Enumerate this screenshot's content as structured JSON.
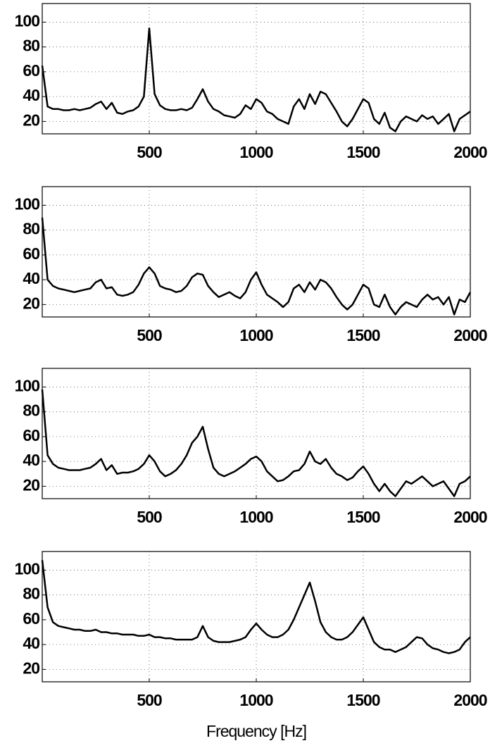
{
  "chart_data": [
    {
      "type": "line",
      "color": "#000000",
      "x": [
        0,
        25,
        50,
        75,
        100,
        125,
        150,
        175,
        200,
        225,
        250,
        275,
        300,
        325,
        350,
        375,
        400,
        425,
        450,
        475,
        500,
        525,
        550,
        575,
        600,
        625,
        650,
        675,
        700,
        725,
        750,
        775,
        800,
        825,
        850,
        875,
        900,
        925,
        950,
        975,
        1000,
        1025,
        1050,
        1075,
        1100,
        1125,
        1150,
        1175,
        1200,
        1225,
        1250,
        1275,
        1300,
        1325,
        1350,
        1375,
        1400,
        1425,
        1450,
        1475,
        1500,
        1525,
        1550,
        1575,
        1600,
        1625,
        1650,
        1675,
        1700,
        1725,
        1750,
        1775,
        1800,
        1825,
        1850,
        1875,
        1900,
        1925,
        1950,
        1975,
        2000
      ],
      "values": [
        65,
        32,
        30,
        30,
        29,
        29,
        30,
        29,
        30,
        31,
        34,
        36,
        30,
        35,
        27,
        26,
        28,
        29,
        32,
        40,
        95,
        42,
        33,
        30,
        29,
        29,
        30,
        29,
        31,
        38,
        46,
        36,
        30,
        28,
        25,
        24,
        23,
        26,
        33,
        30,
        38,
        35,
        28,
        26,
        22,
        20,
        18,
        32,
        38,
        30,
        42,
        34,
        44,
        42,
        35,
        28,
        20,
        16,
        22,
        30,
        38,
        35,
        22,
        18,
        27,
        15,
        12,
        20,
        24,
        22,
        20,
        25,
        22,
        24,
        18,
        22,
        26,
        12,
        22,
        25,
        28
      ],
      "xlim": [
        0,
        2000
      ],
      "ylim": [
        10,
        115
      ],
      "xticks": [
        500,
        1000,
        1500,
        2000
      ],
      "yticks": [
        20,
        40,
        60,
        80,
        100
      ],
      "grid": true
    },
    {
      "type": "line",
      "color": "#000000",
      "x": [
        0,
        25,
        50,
        75,
        100,
        125,
        150,
        175,
        200,
        225,
        250,
        275,
        300,
        325,
        350,
        375,
        400,
        425,
        450,
        475,
        500,
        525,
        550,
        575,
        600,
        625,
        650,
        675,
        700,
        725,
        750,
        775,
        800,
        825,
        850,
        875,
        900,
        925,
        950,
        975,
        1000,
        1025,
        1050,
        1075,
        1100,
        1125,
        1150,
        1175,
        1200,
        1225,
        1250,
        1275,
        1300,
        1325,
        1350,
        1375,
        1400,
        1425,
        1450,
        1475,
        1500,
        1525,
        1550,
        1575,
        1600,
        1625,
        1650,
        1675,
        1700,
        1725,
        1750,
        1775,
        1800,
        1825,
        1850,
        1875,
        1900,
        1925,
        1950,
        1975,
        2000
      ],
      "values": [
        90,
        40,
        35,
        33,
        32,
        31,
        30,
        31,
        32,
        33,
        38,
        40,
        33,
        34,
        28,
        27,
        28,
        30,
        36,
        45,
        50,
        45,
        35,
        33,
        32,
        30,
        31,
        35,
        42,
        45,
        44,
        35,
        30,
        26,
        28,
        30,
        27,
        25,
        30,
        40,
        46,
        36,
        28,
        25,
        22,
        18,
        22,
        33,
        36,
        30,
        38,
        32,
        40,
        38,
        33,
        26,
        20,
        16,
        20,
        28,
        36,
        33,
        20,
        18,
        28,
        18,
        12,
        18,
        22,
        20,
        18,
        24,
        28,
        24,
        26,
        20,
        26,
        12,
        24,
        22,
        30
      ],
      "xlim": [
        0,
        2000
      ],
      "ylim": [
        10,
        115
      ],
      "xticks": [
        500,
        1000,
        1500,
        2000
      ],
      "yticks": [
        20,
        40,
        60,
        80,
        100
      ],
      "grid": true
    },
    {
      "type": "line",
      "color": "#000000",
      "x": [
        0,
        25,
        50,
        75,
        100,
        125,
        150,
        175,
        200,
        225,
        250,
        275,
        300,
        325,
        350,
        375,
        400,
        425,
        450,
        475,
        500,
        525,
        550,
        575,
        600,
        625,
        650,
        675,
        700,
        725,
        750,
        775,
        800,
        825,
        850,
        875,
        900,
        925,
        950,
        975,
        1000,
        1025,
        1050,
        1075,
        1100,
        1125,
        1150,
        1175,
        1200,
        1225,
        1250,
        1275,
        1300,
        1325,
        1350,
        1375,
        1400,
        1425,
        1450,
        1475,
        1500,
        1525,
        1550,
        1575,
        1600,
        1625,
        1650,
        1675,
        1700,
        1725,
        1750,
        1775,
        1800,
        1825,
        1850,
        1875,
        1900,
        1925,
        1950,
        1975,
        2000
      ],
      "values": [
        98,
        45,
        38,
        35,
        34,
        33,
        33,
        33,
        34,
        35,
        38,
        42,
        33,
        37,
        30,
        31,
        31,
        32,
        34,
        38,
        45,
        40,
        32,
        28,
        30,
        33,
        38,
        45,
        55,
        60,
        68,
        50,
        35,
        30,
        28,
        30,
        32,
        35,
        38,
        42,
        44,
        40,
        32,
        28,
        24,
        25,
        28,
        32,
        33,
        38,
        48,
        40,
        38,
        42,
        35,
        30,
        28,
        25,
        27,
        32,
        36,
        30,
        22,
        16,
        22,
        16,
        12,
        18,
        24,
        22,
        25,
        28,
        24,
        20,
        22,
        24,
        18,
        12,
        22,
        24,
        28
      ],
      "xlim": [
        0,
        2000
      ],
      "ylim": [
        10,
        115
      ],
      "xticks": [
        500,
        1000,
        1500,
        2000
      ],
      "yticks": [
        20,
        40,
        60,
        80,
        100
      ],
      "grid": true
    },
    {
      "type": "line",
      "color": "#000000",
      "xlabel": "Frequency [Hz]",
      "x": [
        0,
        25,
        50,
        75,
        100,
        125,
        150,
        175,
        200,
        225,
        250,
        275,
        300,
        325,
        350,
        375,
        400,
        425,
        450,
        475,
        500,
        525,
        550,
        575,
        600,
        625,
        650,
        675,
        700,
        725,
        750,
        775,
        800,
        825,
        850,
        875,
        900,
        925,
        950,
        975,
        1000,
        1025,
        1050,
        1075,
        1100,
        1125,
        1150,
        1175,
        1200,
        1225,
        1250,
        1275,
        1300,
        1325,
        1350,
        1375,
        1400,
        1425,
        1450,
        1475,
        1500,
        1525,
        1550,
        1575,
        1600,
        1625,
        1650,
        1675,
        1700,
        1725,
        1750,
        1775,
        1800,
        1825,
        1850,
        1875,
        1900,
        1925,
        1950,
        1975,
        2000
      ],
      "values": [
        108,
        70,
        58,
        55,
        54,
        53,
        52,
        52,
        51,
        51,
        52,
        50,
        50,
        49,
        49,
        48,
        48,
        48,
        47,
        47,
        48,
        46,
        46,
        45,
        45,
        44,
        44,
        44,
        44,
        46,
        55,
        46,
        43,
        42,
        42,
        42,
        43,
        44,
        46,
        52,
        57,
        52,
        48,
        46,
        46,
        48,
        52,
        60,
        70,
        80,
        90,
        75,
        58,
        50,
        46,
        44,
        44,
        46,
        50,
        56,
        62,
        52,
        42,
        38,
        36,
        36,
        34,
        36,
        38,
        42,
        46,
        45,
        40,
        37,
        36,
        34,
        33,
        34,
        36,
        42,
        46
      ],
      "xlim": [
        0,
        2000
      ],
      "ylim": [
        10,
        115
      ],
      "xticks": [
        500,
        1000,
        1500,
        2000
      ],
      "yticks": [
        20,
        40,
        60,
        80,
        100
      ],
      "grid": true
    }
  ]
}
